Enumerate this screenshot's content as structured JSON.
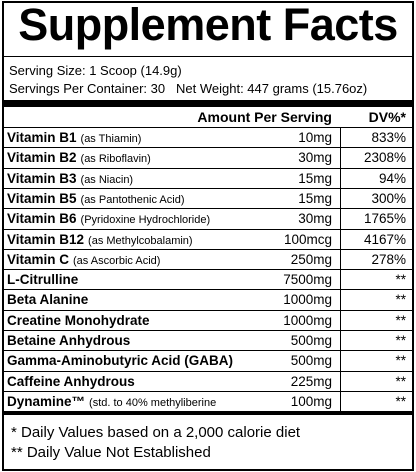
{
  "title": "Supplement Facts",
  "serving": {
    "size": "Serving Size: 1 Scoop (14.9g)",
    "servings": "Servings Per Container: 30",
    "net_weight": "Net Weight: 447 grams (15.76oz)"
  },
  "table": {
    "header": {
      "amount": "Amount Per Serving",
      "dv": "DV%*"
    },
    "rows": [
      {
        "name": "Vitamin B1",
        "detail": "(as Thiamin)",
        "amount": "10mg",
        "dv": "833%"
      },
      {
        "name": "Vitamin B2",
        "detail": "(as Riboflavin)",
        "amount": "30mg",
        "dv": "2308%"
      },
      {
        "name": "Vitamin B3",
        "detail": "(as Niacin)",
        "amount": "15mg",
        "dv": "94%"
      },
      {
        "name": "Vitamin B5",
        "detail": "(as Pantothenic Acid)",
        "amount": "15mg",
        "dv": "300%"
      },
      {
        "name": "Vitamin B6",
        "detail": "(Pyridoxine Hydrochloride)",
        "amount": "30mg",
        "dv": "1765%"
      },
      {
        "name": "Vitamin B12",
        "detail": "(as Methylcobalamin)",
        "amount": "100mcg",
        "dv": "4167%"
      },
      {
        "name": "Vitamin C",
        "detail": "(as Ascorbic Acid)",
        "amount": "250mg",
        "dv": "278%"
      },
      {
        "name": "L-Citrulline",
        "detail": null,
        "amount": "7500mg",
        "dv": "**"
      },
      {
        "name": "Beta Alanine",
        "detail": null,
        "amount": "1000mg",
        "dv": "**"
      },
      {
        "name": "Creatine Monohydrate",
        "detail": null,
        "amount": "1000mg",
        "dv": "**"
      },
      {
        "name": "Betaine Anhydrous",
        "detail": null,
        "amount": "500mg",
        "dv": "**"
      },
      {
        "name": "Gamma-Aminobutyric Acid (GABA)",
        "detail": null,
        "amount": "500mg",
        "dv": "**"
      },
      {
        "name": "Caffeine Anhydrous",
        "detail": null,
        "amount": "225mg",
        "dv": "**"
      },
      {
        "name": "Dynamine™",
        "detail": "(std. to 40% methyliberine",
        "amount": "100mg",
        "dv": "**"
      }
    ]
  },
  "footnotes": [
    "* Daily Values based on a 2,000 calorie diet",
    "** Daily Value Not Established"
  ]
}
